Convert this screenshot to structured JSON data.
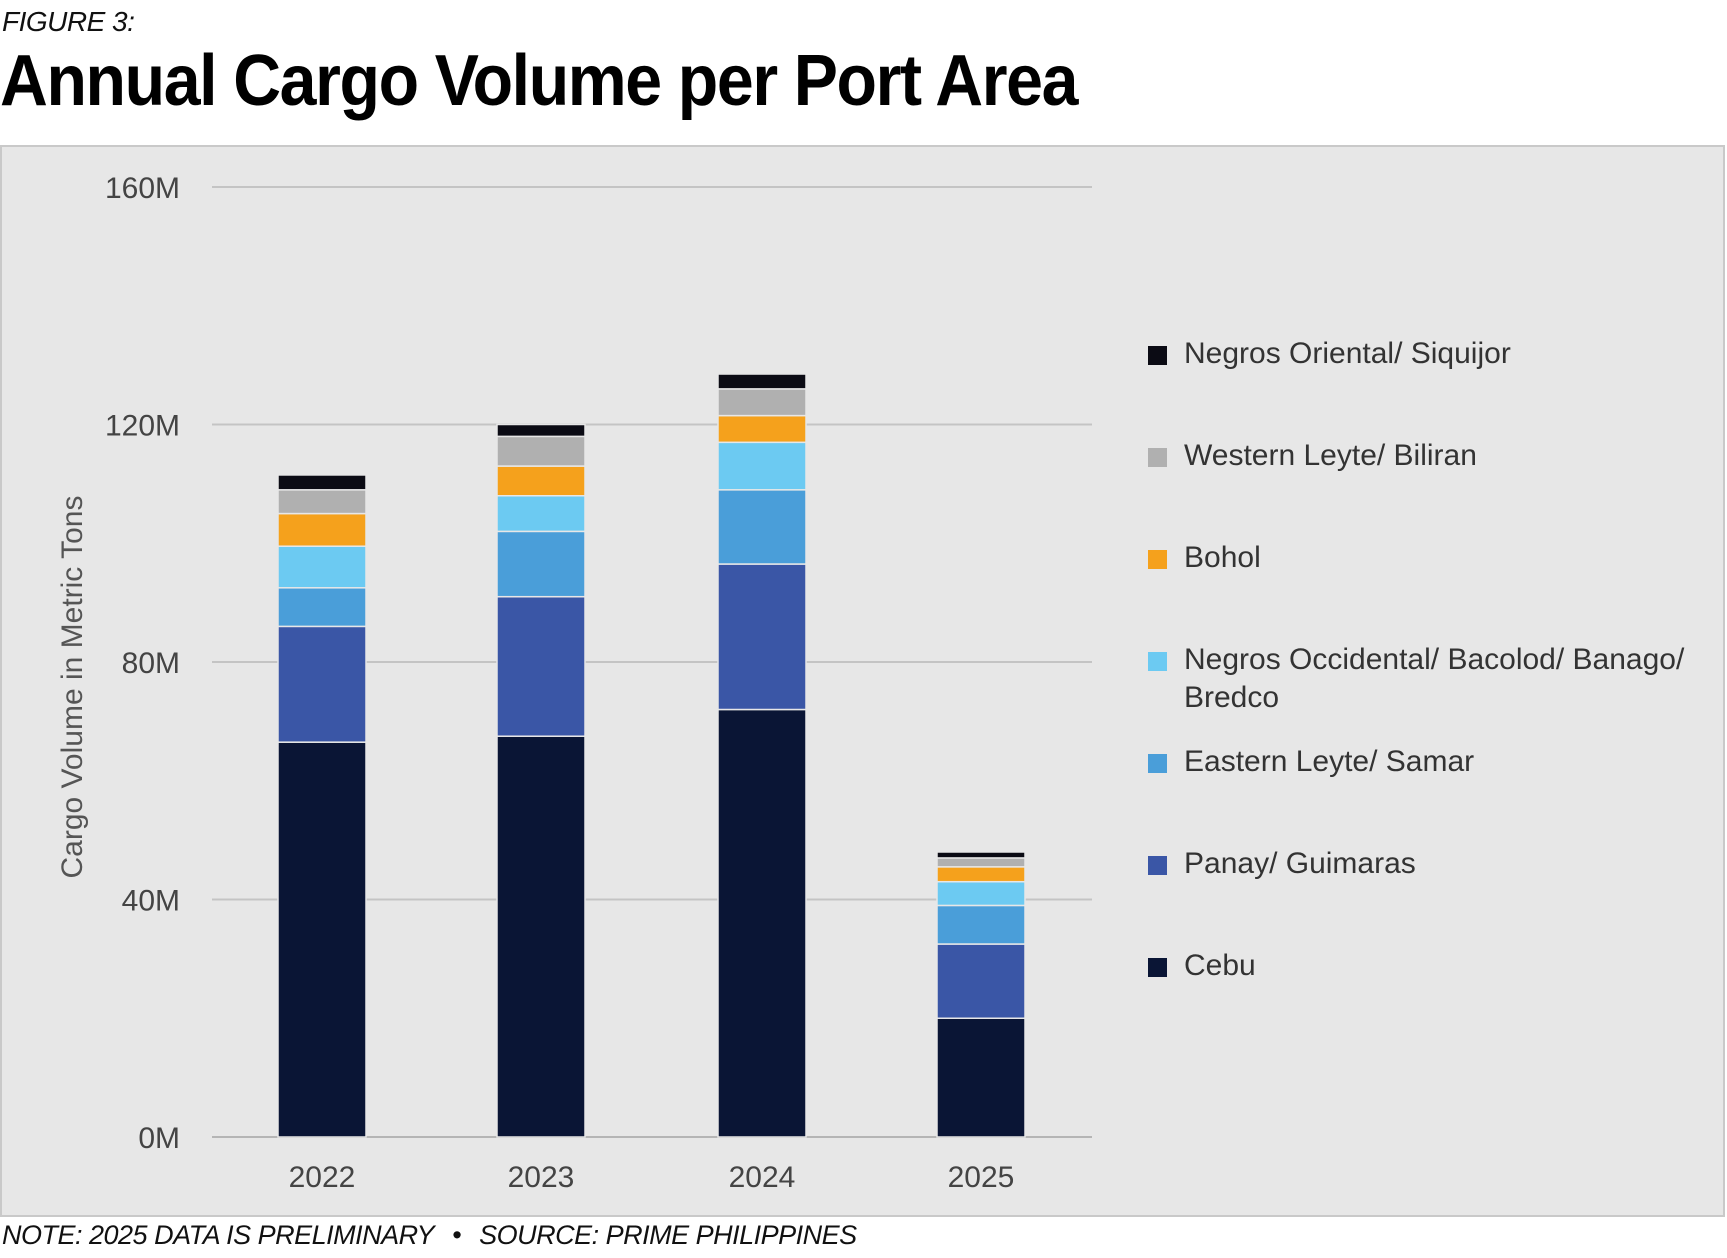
{
  "figure_label": "FIGURE 3:",
  "title": "Annual Cargo Volume per Port Area",
  "footnote": {
    "note": "NOTE: 2025 DATA IS PRELIMINARY",
    "separator": "•",
    "source": "SOURCE: PRIME PHILIPPINES"
  },
  "chart_data": {
    "type": "bar",
    "stacked": true,
    "ylabel": "Cargo Volume in Metric Tons",
    "xlabel": "",
    "ylim": [
      0,
      160
    ],
    "yunit": "M",
    "y_ticks": [
      "0M",
      "40M",
      "80M",
      "120M",
      "160M"
    ],
    "y_tick_values": [
      0,
      40,
      80,
      120,
      160
    ],
    "grid": true,
    "legend_position": "right",
    "categories": [
      "2022",
      "2023",
      "2024",
      "2025"
    ],
    "series": [
      {
        "name": "Cebu",
        "color": "#0a1535",
        "values": [
          66.5,
          67.5,
          72,
          20
        ]
      },
      {
        "name": "Panay/ Guimaras",
        "color": "#3a56a6",
        "values": [
          19.5,
          23.5,
          24.5,
          12.5
        ]
      },
      {
        "name": "Eastern Leyte/ Samar",
        "color": "#4a9ed9",
        "values": [
          6.5,
          11,
          12.5,
          6.5
        ]
      },
      {
        "name": "Negros Occidental/ Bacolod/ Banago/ Bredco",
        "color": "#6ccaf2",
        "values": [
          7,
          6,
          8,
          4
        ]
      },
      {
        "name": "Bohol",
        "color": "#f5a11c",
        "values": [
          5.5,
          5,
          4.5,
          2.5
        ]
      },
      {
        "name": "Western Leyte/ Biliran",
        "color": "#b0b0b0",
        "values": [
          4,
          5,
          4.5,
          1.5
        ]
      },
      {
        "name": "Negros Oriental/ Siquijor",
        "color": "#0b0b14",
        "values": [
          2.5,
          2,
          2.5,
          1
        ]
      }
    ]
  }
}
